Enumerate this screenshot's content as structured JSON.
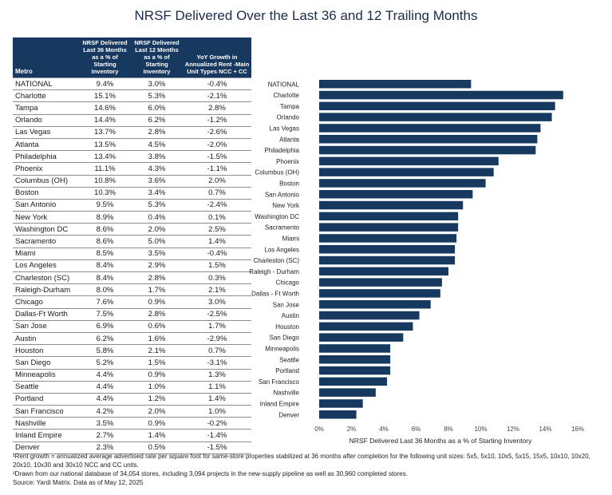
{
  "title": "NRSF Delivered Over the Last 36 and 12 Trailing Months",
  "table": {
    "headers": [
      "Metro",
      "NRSF Delivered Last 36 Months as a % of Starting Inventory",
      "NRSF Delivered Last 12 Months as a % of Starting Inventory",
      "YoY Growth in Annualized Rent -Main Unit Types NCC + CC"
    ],
    "rows": [
      [
        "NATIONAL",
        "9.4%",
        "3.0%",
        "-0.4%"
      ],
      [
        "Charlotte",
        "15.1%",
        "5.3%",
        "-2.1%"
      ],
      [
        "Tampa",
        "14.6%",
        "6.0%",
        "2.8%"
      ],
      [
        "Orlando",
        "14.4%",
        "6.2%",
        "-1.2%"
      ],
      [
        "Las Vegas",
        "13.7%",
        "2.8%",
        "-2.6%"
      ],
      [
        "Atlanta",
        "13.5%",
        "4.5%",
        "-2.0%"
      ],
      [
        "Philadelphia",
        "13.4%",
        "3.8%",
        "-1.5%"
      ],
      [
        "Phoenix",
        "11.1%",
        "4.3%",
        "-1.1%"
      ],
      [
        "Columbus (OH)",
        "10.8%",
        "3.6%",
        "2.0%"
      ],
      [
        "Boston",
        "10.3%",
        "3.4%",
        "0.7%"
      ],
      [
        "San Antonio",
        "9.5%",
        "5.3%",
        "-2.4%"
      ],
      [
        "New York",
        "8.9%",
        "0.4%",
        "0.1%"
      ],
      [
        "Washington DC",
        "8.6%",
        "2.0%",
        "2.5%"
      ],
      [
        "Sacramento",
        "8.6%",
        "5.0%",
        "1.4%"
      ],
      [
        "Miami",
        "8.5%",
        "3.5%",
        "-0.4%"
      ],
      [
        "Los Angeles",
        "8.4%",
        "2.9%",
        "1.5%"
      ],
      [
        "Charleston (SC)",
        "8.4%",
        "2.8%",
        "0.3%"
      ],
      [
        "Raleigh-Durham",
        "8.0%",
        "1.7%",
        "2.1%"
      ],
      [
        "Chicago",
        "7.6%",
        "0.9%",
        "3.0%"
      ],
      [
        "Dallas-Ft Worth",
        "7.5%",
        "2.8%",
        "-2.5%"
      ],
      [
        "San Jose",
        "6.9%",
        "0.6%",
        "1.7%"
      ],
      [
        "Austin",
        "6.2%",
        "1.6%",
        "-2.9%"
      ],
      [
        "Houston",
        "5.8%",
        "2.1%",
        "0.7%"
      ],
      [
        "San Diego",
        "5.2%",
        "1.5%",
        "-3.1%"
      ],
      [
        "Minneapolis",
        "4.4%",
        "0.9%",
        "1.3%"
      ],
      [
        "Seattle",
        "4.4%",
        "1.0%",
        "1.1%"
      ],
      [
        "Portland",
        "4.4%",
        "1.2%",
        "1.4%"
      ],
      [
        "San Francisco",
        "4.2%",
        "2.0%",
        "1.0%"
      ],
      [
        "Nashville",
        "3.5%",
        "0.9%",
        "-0.2%"
      ],
      [
        "Inland Empire",
        "2.7%",
        "1.4%",
        "-1.4%"
      ],
      [
        "Denver",
        "2.3%",
        "0.5%",
        "-1.5%"
      ]
    ]
  },
  "chart_data": {
    "type": "bar",
    "orientation": "horizontal",
    "categories": [
      "NATIONAL",
      "Charlotte",
      "Tampa",
      "Orlando",
      "Las Vegas",
      "Atlanta",
      "Philadelphia",
      "Phoenix",
      "Columbus (OH)",
      "Boston",
      "San Antonio",
      "New York",
      "Washington DC",
      "Sacramento",
      "Miami",
      "Los Angeles",
      "Charleston (SC)",
      "Raleigh - Durham",
      "Chicago",
      "Dallas - Ft Worth",
      "San Jose",
      "Austin",
      "Houston",
      "San Diego",
      "Minneapolis",
      "Seattle",
      "Portland",
      "San Francisco",
      "Nashville",
      "Inland Empire",
      "Denver"
    ],
    "values": [
      9.4,
      15.1,
      14.6,
      14.4,
      13.7,
      13.5,
      13.4,
      11.1,
      10.8,
      10.3,
      9.5,
      8.9,
      8.6,
      8.6,
      8.5,
      8.4,
      8.4,
      8.0,
      7.6,
      7.5,
      6.9,
      6.2,
      5.8,
      5.2,
      4.4,
      4.4,
      4.4,
      4.2,
      3.5,
      2.7,
      2.3
    ],
    "xlim": [
      0,
      16
    ],
    "xticks": [
      "0%",
      "2%",
      "4%",
      "6%",
      "8%",
      "10%",
      "12%",
      "14%",
      "16%"
    ],
    "xlabel": "NRSF Delivered Last 36 Months as a % of Starting Inventory",
    "color": "#17385f"
  },
  "footnotes": [
    "¹Rent growth = annualized average advertised rate per square foot for same-store properties stabilized at 36 months after completion for the following unit sizes: 5x5, 5x10, 10x5, 5x15, 15x5, 10x10, 10x20, 20x10, 10x30 and 30x10 NCC and CC units.",
    "²Drawn from our national database of 34,054 stores, including 3,094 projects in the new-supply pipeline as well as 30,960 completed stores.",
    "Source: Yardi Matrix. Data as of May 12, 2025"
  ]
}
